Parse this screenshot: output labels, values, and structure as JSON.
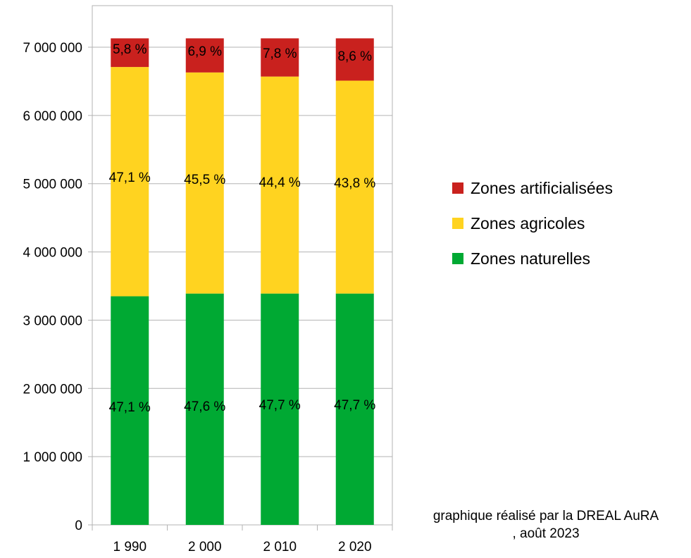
{
  "chart_data": {
    "type": "bar",
    "stacked": true,
    "categories": [
      "1 990",
      "2 000",
      "2 010",
      "2 020"
    ],
    "series": [
      {
        "name": "Zones naturelles",
        "color": "#00a933",
        "values": [
          3350000,
          3390000,
          3390000,
          3390000
        ],
        "labels": [
          "47,1 %",
          "47,6 %",
          "47,7 %",
          "47,7 %"
        ]
      },
      {
        "name": "Zones agricoles",
        "color": "#ffd320",
        "values": [
          3360000,
          3240000,
          3180000,
          3120000
        ],
        "labels": [
          "47,1 %",
          "45,5 %",
          "44,4 %",
          "43,8 %"
        ]
      },
      {
        "name": "Zones artificialisées",
        "color": "#c9211e",
        "values": [
          420000,
          500000,
          560000,
          620000
        ],
        "labels": [
          "5,8 %",
          "6,9 %",
          "7,8 %",
          "8,6 %"
        ]
      }
    ],
    "yticks": [
      "0",
      "1 000 000",
      "2 000 000",
      "3 000 000",
      "4 000 000",
      "5 000 000",
      "6 000 000",
      "7 000 000"
    ],
    "ylim": [
      0,
      7000000
    ],
    "legend_position": "right",
    "legend_order": [
      "Zones artificialisées",
      "Zones agricoles",
      "Zones naturelles"
    ],
    "grid": true,
    "title": "",
    "xlabel": "",
    "ylabel": ""
  },
  "credit": {
    "line1": "graphique réalisé par la DREAL AuRA",
    "line2": ", août 2023"
  }
}
